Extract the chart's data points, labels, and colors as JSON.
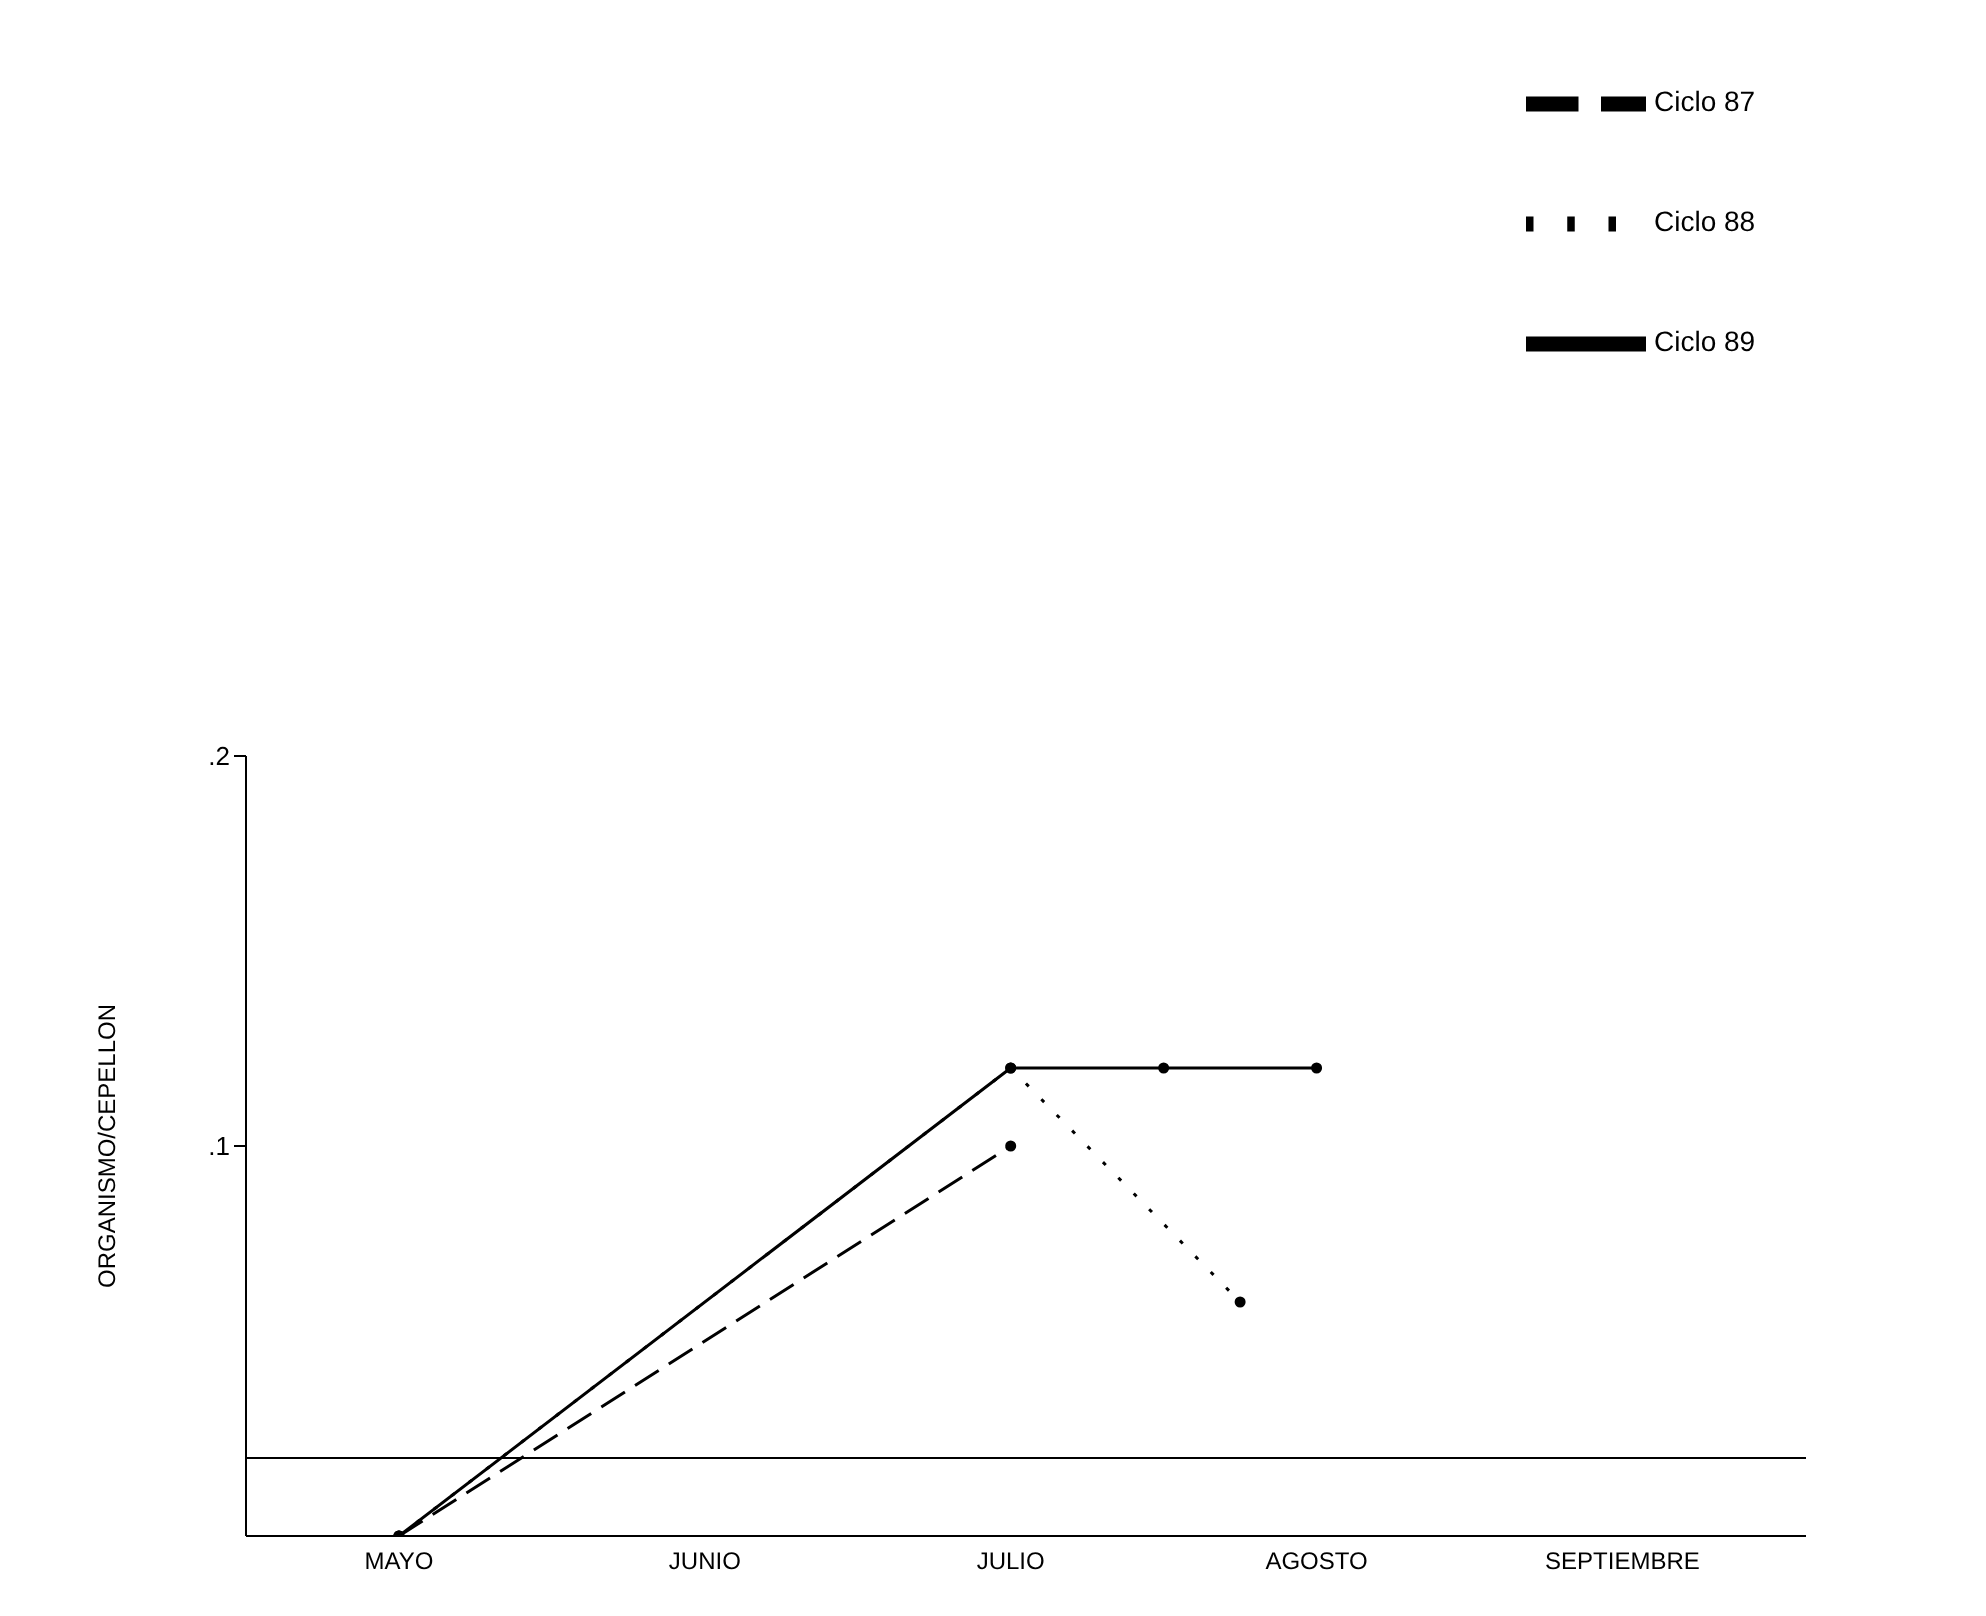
{
  "chart_data": {
    "type": "line",
    "ylabel": "ORGANISMO/CEPELLON",
    "categories": [
      "MAYO",
      null,
      null,
      null,
      "JUNIO",
      null,
      null,
      null,
      "JULIO",
      null,
      null,
      null,
      "AGOSTO",
      null,
      null,
      null,
      "SEPTIEMBRE"
    ],
    "ylim": [
      0,
      0.2
    ],
    "yticks": [
      {
        "value": 0.1,
        "label": ".1"
      },
      {
        "value": 0.2,
        "label": ".2"
      }
    ],
    "grid": false,
    "marker": "circle",
    "legend": "top right",
    "ref_lines": [
      {
        "axis": "y",
        "value": 0.02,
        "color": "#000000"
      }
    ],
    "series": [
      {
        "name": "Ciclo 87",
        "color": "#000000",
        "line_style": "dashed",
        "values": [
          0,
          null,
          null,
          null,
          null,
          null,
          null,
          null,
          0.1,
          null,
          null,
          null,
          null,
          null,
          null,
          null,
          null
        ]
      },
      {
        "name": "Ciclo 88",
        "color": "#000000",
        "line_style": "dotted",
        "values": [
          0,
          null,
          null,
          null,
          null,
          null,
          null,
          null,
          0.12,
          null,
          null,
          0.06,
          null,
          null,
          null,
          null,
          null
        ]
      },
      {
        "name": "Ciclo 89",
        "color": "#000000",
        "line_style": "solid",
        "values": [
          0,
          null,
          null,
          null,
          null,
          null,
          null,
          null,
          0.12,
          null,
          0.12,
          null,
          0.12,
          null,
          null,
          null,
          null
        ]
      }
    ]
  }
}
